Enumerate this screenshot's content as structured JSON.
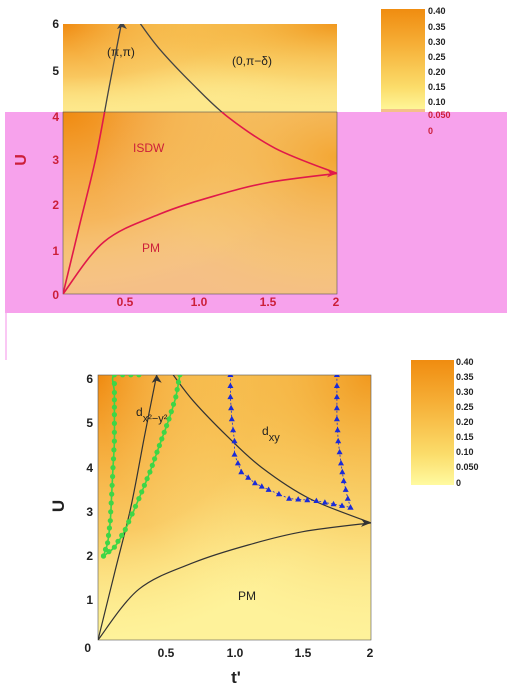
{
  "chart_data": [
    {
      "type": "heatmap",
      "panel": "top",
      "xlabel": "",
      "ylabel": "U",
      "xlim": [
        0,
        2
      ],
      "ylim": [
        0,
        6
      ],
      "x_ticks": [
        "0.5",
        "1.0",
        "1.5",
        "2"
      ],
      "y_ticks": [
        "0",
        "1",
        "2",
        "3",
        "4",
        "5",
        "6"
      ],
      "colorbar_ticks": [
        "0.40",
        "0.35",
        "0.30",
        "0.25",
        "0.20",
        "0.15",
        "0.10",
        "0.050",
        "0"
      ],
      "region_labels": [
        {
          "text": "(π,π)",
          "x": 0.27,
          "y": 5.5
        },
        {
          "text": "(0,π−δ)",
          "x": 1.3,
          "y": 5.35
        },
        {
          "text": "ISDW",
          "x": 0.62,
          "y": 3.05
        },
        {
          "text": "PM",
          "x": 0.65,
          "y": 1.0
        }
      ],
      "series": [
        {
          "values": [
            [
              0.0,
              0.0
            ],
            [
              0.12,
              1.5
            ],
            [
              0.24,
              3.0
            ],
            [
              0.34,
              4.6
            ],
            [
              0.43,
              6.0
            ]
          ]
        },
        {
          "values": [
            [
              0.0,
              0.0
            ],
            [
              0.3,
              1.15
            ],
            [
              0.7,
              1.75
            ],
            [
              1.1,
              2.15
            ],
            [
              1.5,
              2.45
            ],
            [
              2.0,
              2.65
            ]
          ]
        },
        {
          "values": [
            [
              2.0,
              2.65
            ],
            [
              1.55,
              3.2
            ],
            [
              1.2,
              3.9
            ],
            [
              0.95,
              4.6
            ],
            [
              0.7,
              5.4
            ],
            [
              0.55,
              6.0
            ]
          ]
        }
      ]
    },
    {
      "type": "heatmap",
      "panel": "bottom",
      "xlabel": "t'",
      "ylabel": "U",
      "xlim": [
        0,
        2
      ],
      "ylim": [
        0,
        6
      ],
      "x_ticks": [
        "0",
        "0.5",
        "1.0",
        "1.5",
        "2"
      ],
      "y_ticks": [
        "0",
        "1",
        "2",
        "3",
        "4",
        "5",
        "6"
      ],
      "colorbar_ticks": [
        "0.40",
        "0.35",
        "0.30",
        "0.25",
        "0.20",
        "0.15",
        "0.10",
        "0.050",
        "0"
      ],
      "region_labels": [
        {
          "text": "d",
          "sub": "x²−y²",
          "x": 0.3,
          "y": 5.2
        },
        {
          "text": "d",
          "sub": "xy",
          "x": 1.3,
          "y": 5.0
        },
        {
          "text": "PM",
          "x": 1.05,
          "y": 1.0
        }
      ],
      "series": [
        {
          "values": [
            [
              0.0,
              0.0
            ],
            [
              0.12,
              1.5
            ],
            [
              0.24,
              3.0
            ],
            [
              0.34,
              4.6
            ],
            [
              0.43,
              6.0
            ]
          ]
        },
        {
          "values": [
            [
              0.0,
              0.0
            ],
            [
              0.3,
              1.15
            ],
            [
              0.7,
              1.75
            ],
            [
              1.1,
              2.15
            ],
            [
              1.5,
              2.45
            ],
            [
              2.0,
              2.65
            ]
          ]
        },
        {
          "values": [
            [
              2.0,
              2.65
            ],
            [
              1.55,
              3.2
            ],
            [
              1.2,
              3.9
            ],
            [
              0.95,
              4.6
            ],
            [
              0.7,
              5.4
            ],
            [
              0.55,
              6.0
            ]
          ]
        },
        {
          "values": [
            [
              0.04,
              1.9
            ],
            [
              0.07,
              2.2
            ],
            [
              0.09,
              2.7
            ],
            [
              0.1,
              3.3
            ],
            [
              0.11,
              3.9
            ],
            [
              0.12,
              4.5
            ],
            [
              0.12,
              5.1
            ],
            [
              0.12,
              5.6
            ],
            [
              0.12,
              6.0
            ],
            [
              0.3,
              6.0
            ]
          ]
        },
        {
          "values": [
            [
              0.04,
              1.9
            ],
            [
              0.12,
              2.1
            ],
            [
              0.2,
              2.5
            ],
            [
              0.3,
              3.2
            ],
            [
              0.38,
              3.8
            ],
            [
              0.45,
              4.4
            ],
            [
              0.52,
              5.0
            ],
            [
              0.57,
              5.5
            ],
            [
              0.6,
              6.0
            ]
          ]
        },
        {
          "values": [
            [
              0.97,
              6.0
            ],
            [
              0.97,
              5.5
            ],
            [
              0.98,
              5.0
            ],
            [
              1.0,
              4.5
            ],
            [
              1.0,
              4.2
            ],
            [
              1.05,
              3.8
            ],
            [
              1.15,
              3.55
            ],
            [
              1.25,
              3.4
            ],
            [
              1.4,
              3.2
            ],
            [
              1.6,
              3.15
            ],
            [
              1.85,
              3.0
            ]
          ]
        },
        {
          "values": [
            [
              1.75,
              6.0
            ],
            [
              1.75,
              5.5
            ],
            [
              1.75,
              5.0
            ],
            [
              1.76,
              4.5
            ],
            [
              1.78,
              4.0
            ],
            [
              1.8,
              3.6
            ],
            [
              1.83,
              3.2
            ],
            [
              1.85,
              3.0
            ]
          ]
        }
      ]
    }
  ]
}
